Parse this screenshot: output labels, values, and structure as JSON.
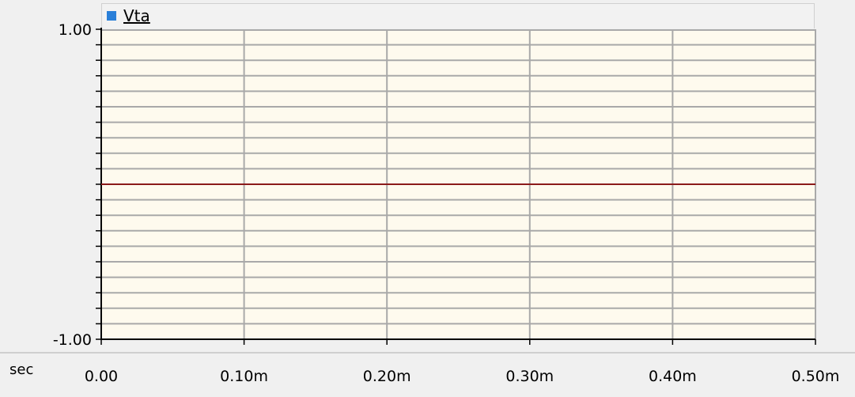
{
  "legend": {
    "series_name": "Vta",
    "swatch_color": "#2a7fd8"
  },
  "colors": {
    "plot_background": "#fefaee",
    "grid": "#a9a9a9",
    "trace": "#8b1a1a",
    "axis": "#000000"
  },
  "x_unit_label": "sec",
  "chart_data": {
    "type": "line",
    "series": [
      {
        "name": "Vta",
        "x": [
          0,
          0.0005
        ],
        "y": [
          0,
          0
        ]
      }
    ],
    "xlim": [
      0,
      0.0005
    ],
    "ylim": [
      -1,
      1
    ],
    "x_ticks": [
      0,
      0.0001,
      0.0002,
      0.0003,
      0.0004,
      0.0005
    ],
    "x_tick_labels": [
      "0.00",
      "0.10m",
      "0.20m",
      "0.30m",
      "0.40m",
      "0.50m"
    ],
    "y_ticks": [
      1,
      -1
    ],
    "y_tick_labels": [
      "1.00",
      "-1.00"
    ],
    "y_grid_count": 20,
    "grid": true
  }
}
